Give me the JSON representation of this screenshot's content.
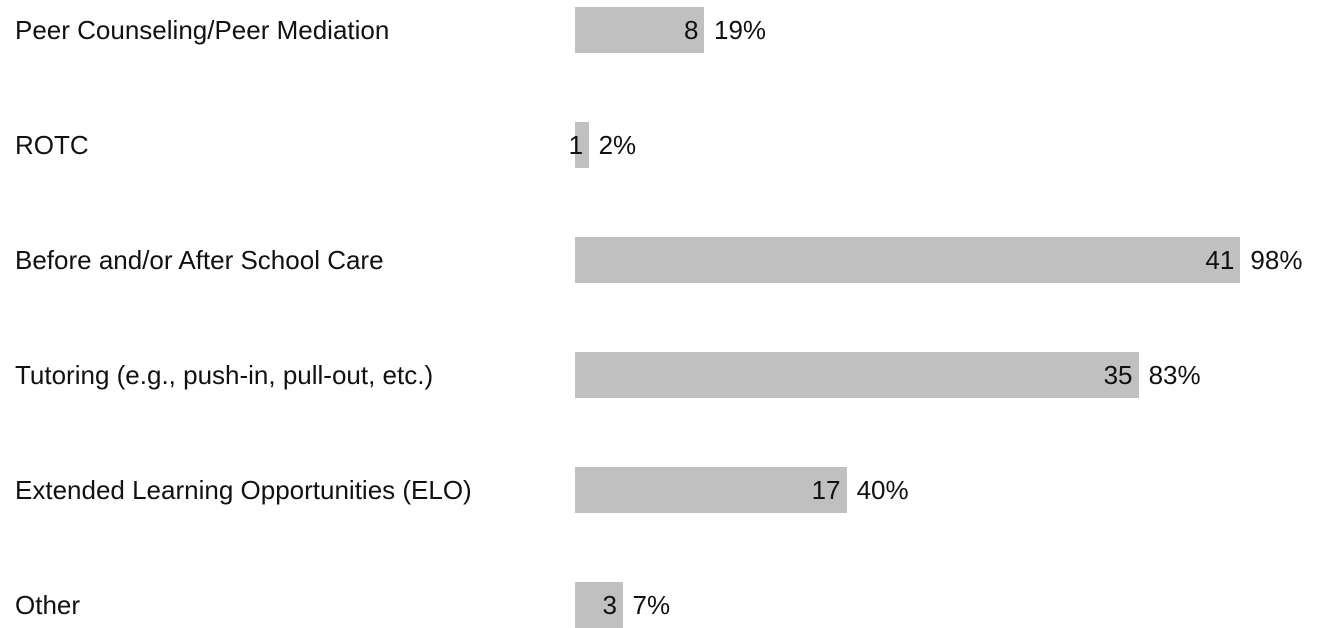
{
  "chart_data": {
    "type": "bar",
    "orientation": "horizontal",
    "categories": [
      "Peer Counseling/Peer Mediation",
      "ROTC",
      "Before and/or After School Care",
      "Tutoring (e.g., push-in, pull-out, etc.)",
      "Extended Learning Opportunities (ELO)",
      "Other"
    ],
    "values": [
      19,
      2,
      98,
      83,
      40,
      7
    ],
    "value_labels": [
      "19%",
      "2%",
      "98%",
      "83%",
      "40%",
      "7%"
    ],
    "counts": [
      8,
      1,
      41,
      35,
      17,
      3
    ],
    "color": "#c0c0c0",
    "xlim": [
      0,
      100
    ]
  }
}
